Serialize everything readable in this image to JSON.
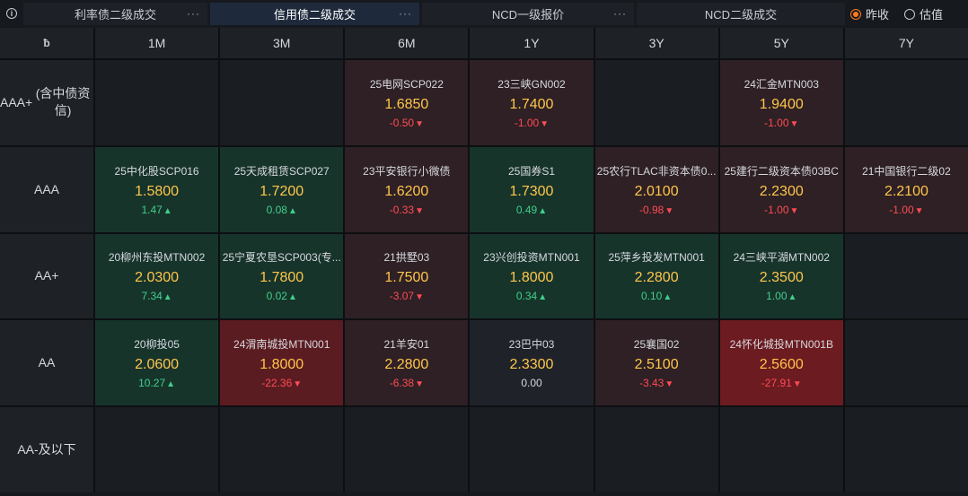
{
  "topbar": {
    "info_icon": "i",
    "tabs": [
      {
        "label": "利率债二级成交",
        "more": "···",
        "active": false
      },
      {
        "label": "信用债二级成交",
        "more": "···",
        "active": true
      },
      {
        "label": "NCD一级报价",
        "more": "···",
        "active": false
      },
      {
        "label": "NCD二级成交",
        "more": "",
        "active": false
      }
    ],
    "radio": [
      {
        "label": "昨收",
        "checked": true
      },
      {
        "label": "估值",
        "checked": false
      }
    ]
  },
  "table": {
    "corner_icon": "ƀ",
    "columns": [
      "1M",
      "3M",
      "6M",
      "1Y",
      "3Y",
      "5Y",
      "7Y"
    ],
    "rows": [
      {
        "label": "AAA+",
        "sublabel": "(含中债资信)",
        "cells": [
          null,
          null,
          {
            "name": "25电网SCP022",
            "yield": "1.6850",
            "change": "-0.50",
            "dir": "down",
            "tone": "dn"
          },
          {
            "name": "23三峡GN002",
            "yield": "1.7400",
            "change": "-1.00",
            "dir": "down",
            "tone": "dn"
          },
          null,
          {
            "name": "24汇金MTN003",
            "yield": "1.9400",
            "change": "-1.00",
            "dir": "down",
            "tone": "dn"
          },
          null
        ]
      },
      {
        "label": "AAA",
        "sublabel": "",
        "cells": [
          {
            "name": "25中化股SCP016",
            "yield": "1.5800",
            "change": "1.47",
            "dir": "up",
            "tone": "up"
          },
          {
            "name": "25天成租赁SCP027",
            "yield": "1.7200",
            "change": "0.08",
            "dir": "up",
            "tone": "up"
          },
          {
            "name": "23平安银行小微债",
            "yield": "1.6200",
            "change": "-0.33",
            "dir": "down",
            "tone": "dn"
          },
          {
            "name": "25国券S1",
            "yield": "1.7300",
            "change": "0.49",
            "dir": "up",
            "tone": "up"
          },
          {
            "name": "25农行TLAC非资本债0...",
            "yield": "2.0100",
            "change": "-0.98",
            "dir": "down",
            "tone": "dn"
          },
          {
            "name": "25建行二级资本债03BC",
            "yield": "2.2300",
            "change": "-1.00",
            "dir": "down",
            "tone": "dn"
          },
          {
            "name": "21中国银行二级02",
            "yield": "2.2100",
            "change": "-1.00",
            "dir": "down",
            "tone": "dn"
          }
        ]
      },
      {
        "label": "AA+",
        "sublabel": "",
        "cells": [
          {
            "name": "20柳州东投MTN002",
            "yield": "2.0300",
            "change": "7.34",
            "dir": "up",
            "tone": "up"
          },
          {
            "name": "25宁夏农垦SCP003(专...",
            "yield": "1.7800",
            "change": "0.02",
            "dir": "up",
            "tone": "up"
          },
          {
            "name": "21拱墅03",
            "yield": "1.7500",
            "change": "-3.07",
            "dir": "down",
            "tone": "dn"
          },
          {
            "name": "23兴创投资MTN001",
            "yield": "1.8000",
            "change": "0.34",
            "dir": "up",
            "tone": "up"
          },
          {
            "name": "25萍乡投发MTN001",
            "yield": "2.2800",
            "change": "0.10",
            "dir": "up",
            "tone": "up"
          },
          {
            "name": "24三峡平湖MTN002",
            "yield": "2.3500",
            "change": "1.00",
            "dir": "up",
            "tone": "up"
          },
          null
        ]
      },
      {
        "label": "AA",
        "sublabel": "",
        "cells": [
          {
            "name": "20柳投05",
            "yield": "2.0600",
            "change": "10.27",
            "dir": "up",
            "tone": "up"
          },
          {
            "name": "24渭南城投MTN001",
            "yield": "1.8000",
            "change": "-22.36",
            "dir": "down",
            "tone": "dn2"
          },
          {
            "name": "21羊安01",
            "yield": "2.2800",
            "change": "-6.38",
            "dir": "down",
            "tone": "dn"
          },
          {
            "name": "23巴中03",
            "yield": "2.3300",
            "change": "0.00",
            "dir": "flat",
            "tone": "flat"
          },
          {
            "name": "25襄国02",
            "yield": "2.5100",
            "change": "-3.43",
            "dir": "down",
            "tone": "dn"
          },
          {
            "name": "24怀化城投MTN001B",
            "yield": "2.5600",
            "change": "-27.91",
            "dir": "down",
            "tone": "dn3"
          },
          null
        ]
      },
      {
        "label": "AA-及以下",
        "sublabel": "",
        "cells": [
          null,
          null,
          null,
          null,
          null,
          null,
          null
        ]
      }
    ]
  },
  "colors": {
    "up": "#3fd08a",
    "down": "#ff4b55",
    "yield": "#ffc64b",
    "radio_accent": "#ff7a1a"
  }
}
